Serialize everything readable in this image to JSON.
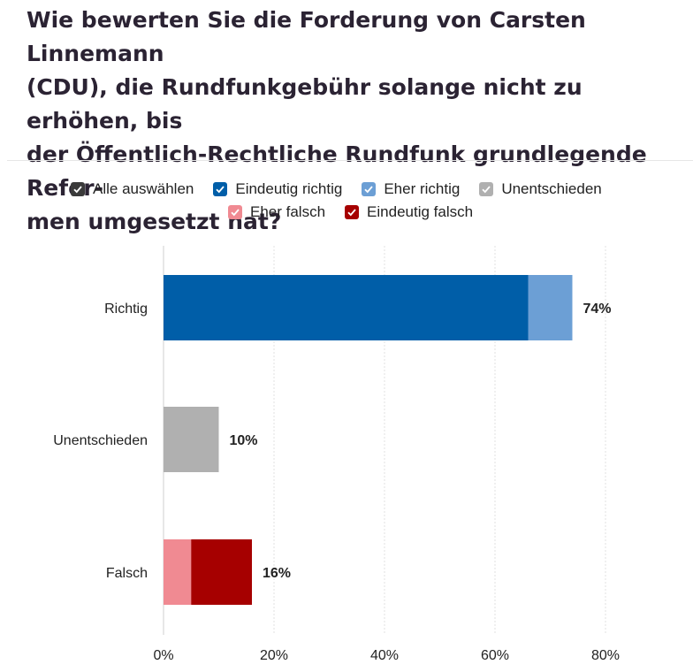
{
  "title": "Wie bewerten Sie die Forderung von Carsten Linnemann (CDU), die Rundfunkgebühr solange nicht zu erhöhen, bis der Öffentlich-Rechtliche Rundfunk grundlegende Refor-men umgesetzt hat?",
  "title_lines": [
    "Wie bewerten Sie die Forderung von Carsten Linnemann",
    "(CDU), die Rundfunkgebühr solange nicht zu erhöhen, bis",
    "der Öffentlich-Rechtliche Rundfunk grundlegende Refor-",
    "men umgesetzt hat?"
  ],
  "legend": {
    "select_all": {
      "label": "Alle auswählen",
      "color": "#3a3a3a"
    },
    "items": [
      {
        "label": "Eindeutig richtig",
        "color": "#005ea8"
      },
      {
        "label": "Eher richtig",
        "color": "#6c9fd5"
      },
      {
        "label": "Unentschieden",
        "color": "#b0b0b0"
      },
      {
        "label": "Eher falsch",
        "color": "#f08a92"
      },
      {
        "label": "Eindeutig falsch",
        "color": "#a60000"
      }
    ]
  },
  "chart_data": {
    "type": "bar",
    "orientation": "horizontal",
    "stacked": true,
    "categories": [
      "Richtig",
      "Unentschieden",
      "Falsch"
    ],
    "series": [
      {
        "name": "Eindeutig richtig",
        "color": "#005ea8",
        "values": [
          66,
          0,
          0
        ]
      },
      {
        "name": "Eher richtig",
        "color": "#6c9fd5",
        "values": [
          8,
          0,
          0
        ]
      },
      {
        "name": "Unentschieden",
        "color": "#b0b0b0",
        "values": [
          0,
          10,
          0
        ]
      },
      {
        "name": "Eher falsch",
        "color": "#f08a92",
        "values": [
          0,
          0,
          5
        ]
      },
      {
        "name": "Eindeutig falsch",
        "color": "#a60000",
        "values": [
          0,
          0,
          11
        ]
      }
    ],
    "totals": [
      "74%",
      "10%",
      "16%"
    ],
    "xlim": [
      0,
      80
    ],
    "xticks": [
      0,
      20,
      40,
      60,
      80
    ],
    "xtick_labels": [
      "0%",
      "20%",
      "40%",
      "60%",
      "80%"
    ],
    "grid": true,
    "legend_position": "top"
  }
}
